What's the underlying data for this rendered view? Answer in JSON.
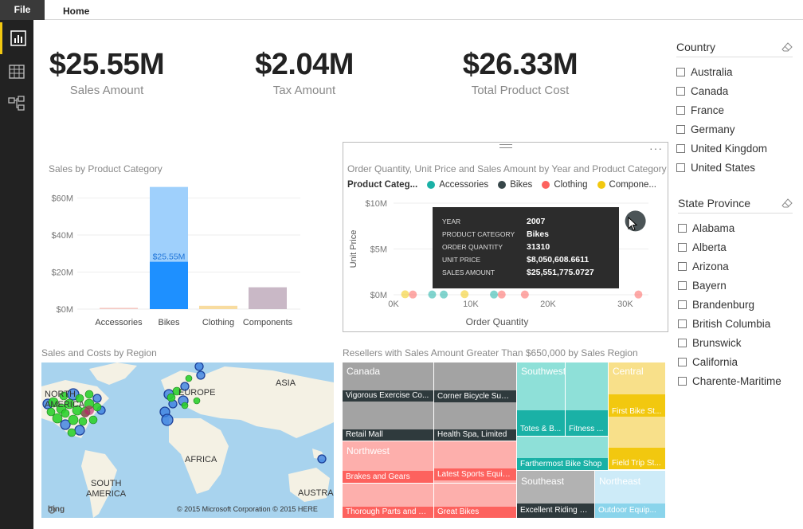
{
  "ribbon": {
    "file_label": "File",
    "home_label": "Home"
  },
  "kpis": [
    {
      "value": "$25.55M",
      "label": "Sales Amount"
    },
    {
      "value": "$2.04M",
      "label": "Tax Amount"
    },
    {
      "value": "$26.33M",
      "label": "Total Product Cost"
    }
  ],
  "bar_chart": {
    "title": "Sales by Product Category",
    "highlight_label": "$25.55M"
  },
  "scatter": {
    "title": "Order Quantity, Unit Price and Sales Amount by Year and Product Category",
    "legend_title": "Product Categ...",
    "legend": [
      {
        "name": "Accessories",
        "color": "#1ab1a6"
      },
      {
        "name": "Bikes",
        "color": "#374649"
      },
      {
        "name": "Clothing",
        "color": "#fd625e"
      },
      {
        "name": "Compone...",
        "color": "#f2c80f"
      }
    ],
    "tooltip": [
      {
        "k": "YEAR",
        "v": "2007"
      },
      {
        "k": "PRODUCT CATEGORY",
        "v": "Bikes"
      },
      {
        "k": "ORDER QUANTITY",
        "v": "31310"
      },
      {
        "k": "UNIT PRICE",
        "v": "$8,050,608.6611"
      },
      {
        "k": "SALES AMOUNT",
        "v": "$25,551,775.0727"
      }
    ]
  },
  "map": {
    "title": "Sales and Costs by Region",
    "labels": [
      "NORTH",
      "AMERICA",
      "EUROPE",
      "ASIA",
      "AFRICA",
      "SOUTH",
      "AMERICA",
      "AUSTRALIA"
    ],
    "bing": "bing",
    "copyright": "© 2015 Microsoft Corporation   © 2015 HERE"
  },
  "treemap": {
    "title": "Resellers with Sales Amount Greater Than $650,000 by Sales Region",
    "groups": [
      "Canada",
      "Northwest",
      "Southwest",
      "Central",
      "Southeast",
      "Northeast"
    ],
    "labels": [
      "Vigorous Exercise Co...",
      "Corner Bicycle Supply",
      "Retail Mall",
      "Health Spa, Limited",
      "Brakes and Gears",
      "Latest Sports Equip...",
      "Thorough Parts and R...",
      "Great Bikes",
      "Totes & B...",
      "Fitness ...",
      "Farthermost Bike Shop",
      "First Bike St...",
      "Field Trip St...",
      "Excellent Riding S...",
      "Outdoor Equip..."
    ]
  },
  "chart_data": [
    {
      "type": "bar",
      "title": "Sales by Product Category",
      "categories": [
        "Accessories",
        "Bikes",
        "Clothing",
        "Components"
      ],
      "values": [
        0.7,
        66,
        1.8,
        11.8
      ],
      "highlighted_values": [
        0,
        25.55,
        0,
        0
      ],
      "yticks": [
        "$0M",
        "$20M",
        "$40M",
        "$60M"
      ],
      "ylim": [
        0,
        68
      ],
      "colors": [
        "#f4c9c3",
        "#1e90ff",
        "#f8dca0",
        "#c9b8c6"
      ],
      "highlight_color": "#1e90ff",
      "background_color": "#9fd0fc"
    },
    {
      "type": "scatter",
      "title": "Order Quantity, Unit Price and Sales Amount by Year and Product Category",
      "xlabel": "Order Quantity",
      "ylabel": "Unit Price",
      "xticks": [
        "0K",
        "10K",
        "20K",
        "30K"
      ],
      "yticks": [
        "$0M",
        "$5M",
        "$10M"
      ],
      "xlim": [
        0,
        33000
      ],
      "ylim": [
        0,
        10000000
      ],
      "points": [
        {
          "x": 1500,
          "y": 50000,
          "c": "#f2c80f"
        },
        {
          "x": 2500,
          "y": 30000,
          "c": "#fd625e"
        },
        {
          "x": 5000,
          "y": 30000,
          "c": "#1ab1a6"
        },
        {
          "x": 6500,
          "y": 30000,
          "c": "#1ab1a6"
        },
        {
          "x": 9200,
          "y": 60000,
          "c": "#f2c80f"
        },
        {
          "x": 13000,
          "y": 30000,
          "c": "#1ab1a6"
        },
        {
          "x": 14000,
          "y": 30000,
          "c": "#fd625e"
        },
        {
          "x": 17000,
          "y": 30000,
          "c": "#fd625e"
        },
        {
          "x": 31310,
          "y": 8050608,
          "c": "#374649"
        },
        {
          "x": 31700,
          "y": 30000,
          "c": "#fd625e"
        }
      ]
    }
  ],
  "slicers": [
    {
      "title": "Country",
      "items": [
        "Australia",
        "Canada",
        "France",
        "Germany",
        "United Kingdom",
        "United States"
      ]
    },
    {
      "title": "State Province",
      "items": [
        "Alabama",
        "Alberta",
        "Arizona",
        "Bayern",
        "Brandenburg",
        "British Columbia",
        "Brunswick",
        "California",
        "Charente-Maritime"
      ]
    }
  ]
}
